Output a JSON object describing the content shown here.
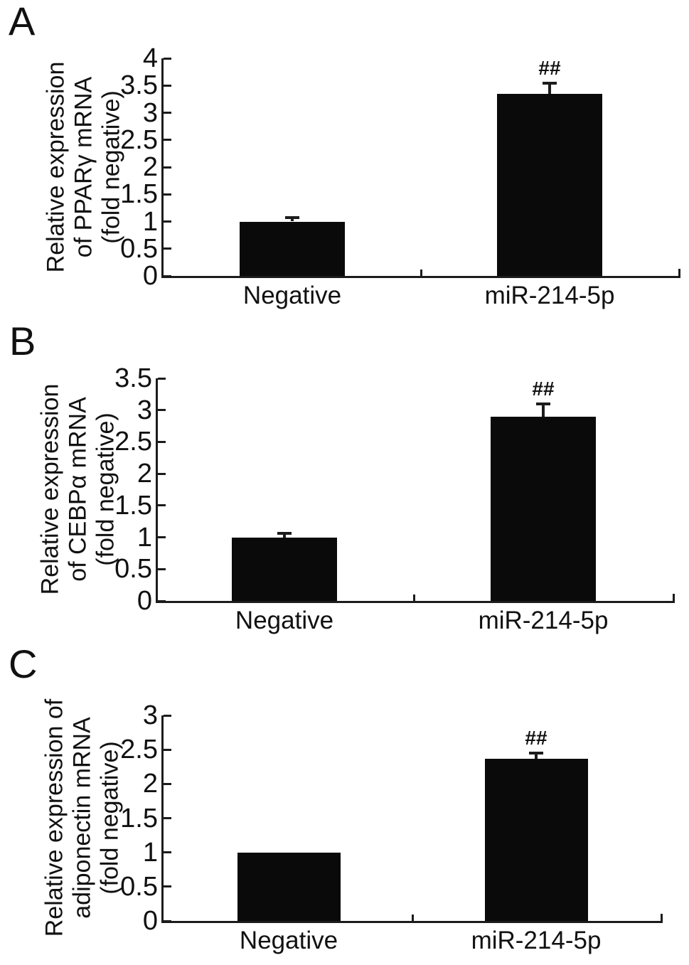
{
  "figure": {
    "background": "#ffffff",
    "bar_color": "#0a0a0a",
    "axis_color": "#1c1c1c",
    "text_color": "#111111"
  },
  "chart_data": [
    {
      "type": "bar",
      "panel": "A",
      "ylabel_lines": [
        "Relative expression",
        "of PPARγ mRNA",
        "(fold negative)"
      ],
      "categories": [
        "Negative",
        "miR-214-5p"
      ],
      "values": [
        1.0,
        3.35
      ],
      "errors": [
        0.1,
        0.22
      ],
      "annotations": [
        "",
        "##"
      ],
      "ylim": [
        0,
        4
      ],
      "ytick_labels": [
        "0",
        "0.5",
        "1",
        "1.5",
        "2",
        "2.5",
        "3",
        "3.5",
        "4"
      ],
      "grid": false,
      "legend": "none"
    },
    {
      "type": "bar",
      "panel": "B",
      "ylabel_lines": [
        "Relative expression",
        "of CEBPα mRNA",
        "(fold negative)"
      ],
      "categories": [
        "Negative",
        "miR-214-5p"
      ],
      "values": [
        1.0,
        2.9
      ],
      "errors": [
        0.08,
        0.22
      ],
      "annotations": [
        "",
        "##"
      ],
      "ylim": [
        0,
        3.5
      ],
      "ytick_labels": [
        "0",
        "0.5",
        "1",
        "1.5",
        "2",
        "2.5",
        "3",
        "3.5"
      ],
      "grid": false,
      "legend": "none"
    },
    {
      "type": "bar",
      "panel": "C",
      "ylabel_lines": [
        "Relative expression of",
        "adiponectin mRNA",
        "(fold negative)"
      ],
      "categories": [
        "Negative",
        "miR-214-5p"
      ],
      "values": [
        1.0,
        2.37
      ],
      "errors": [
        0,
        0.1
      ],
      "annotations": [
        "",
        "##"
      ],
      "ylim": [
        0,
        3
      ],
      "ytick_labels": [
        "0",
        "0.5",
        "1",
        "1.5",
        "2",
        "2.5",
        "3"
      ],
      "grid": false,
      "legend": "none"
    }
  ]
}
